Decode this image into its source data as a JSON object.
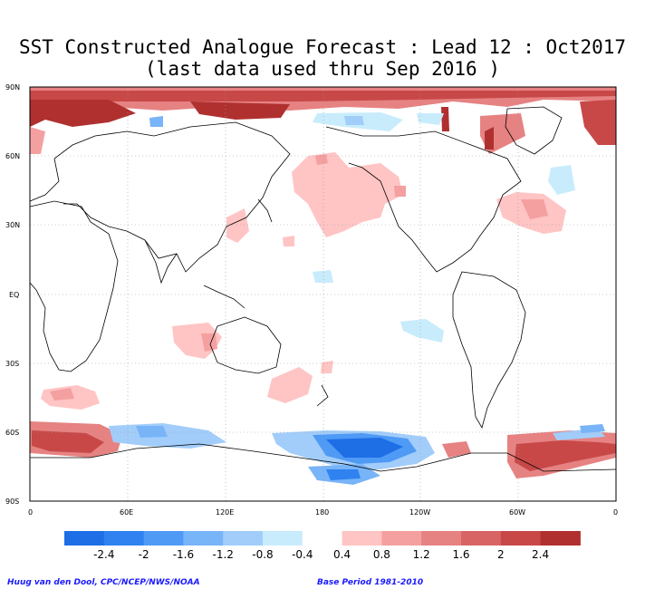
{
  "title_line1": "SST Constructed Analogue Forecast : Lead 12 : Oct2017",
  "title_line2": "(last data used thru Sep 2016 )",
  "lat_labels": [
    "90N",
    "60N",
    "30N",
    "EQ",
    "30S",
    "60S",
    "90S"
  ],
  "lon_labels": [
    "0",
    "60E",
    "120E",
    "180",
    "120W",
    "60W",
    "0"
  ],
  "colorbar": {
    "colors": [
      "#1e6ee6",
      "#2f82f0",
      "#4f9af5",
      "#78b4f8",
      "#a2cdfa",
      "#c8ecfc",
      "#ffffff",
      "#ffc4c4",
      "#f4a0a0",
      "#e68282",
      "#d96464",
      "#c84848",
      "#b03030"
    ],
    "labels": [
      "-2.4",
      "-2",
      "-1.6",
      "-1.2",
      "-0.8",
      "-0.4",
      "0.4",
      "0.8",
      "1.2",
      "1.6",
      "2",
      "2.4"
    ]
  },
  "credit": "Huug van den Dool, CPC/NCEP/NWS/NOAA",
  "base_period": "Base Period 1981-2010"
}
